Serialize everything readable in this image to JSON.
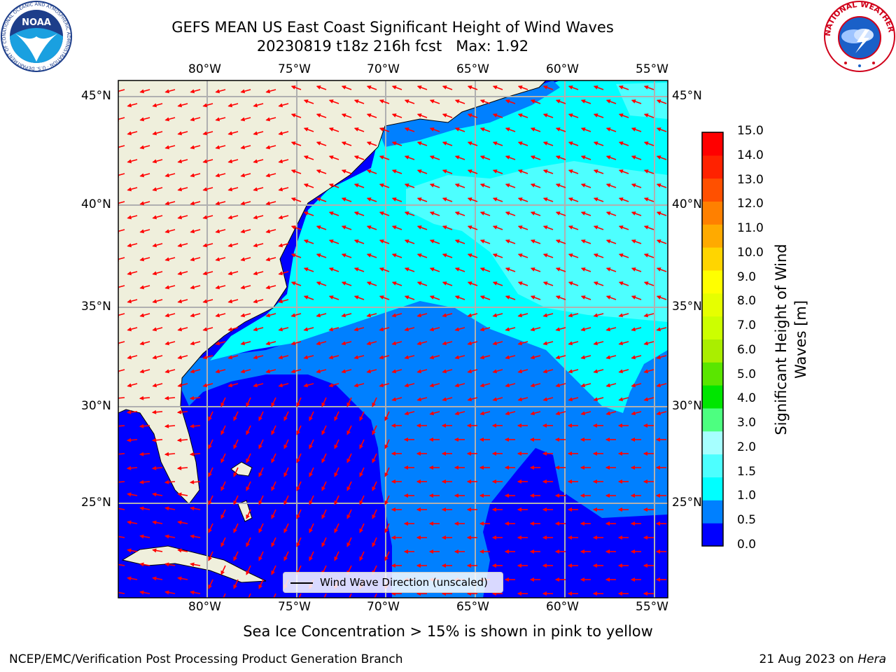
{
  "title_line1": "GEFS MEAN US East Coast Significant Height of Wind Waves",
  "title_line2": "20230819 t18z 216h fcst   Max: 1.92",
  "lon_ticks": [
    "80°W",
    "75°W",
    "70°W",
    "65°W",
    "60°W",
    "55°W"
  ],
  "lat_ticks": [
    "45°N",
    "40°N",
    "35°N",
    "30°N",
    "25°N"
  ],
  "colorbar": {
    "label": "Significant Height of Wind\nWaves [m]",
    "ticks": [
      "15.0",
      "14.0",
      "13.0",
      "12.0",
      "11.0",
      "10.0",
      "9.0",
      "8.0",
      "7.0",
      "6.0",
      "5.0",
      "4.0",
      "3.0",
      "2.0",
      "1.5",
      "1.0",
      "0.5",
      "0.0"
    ],
    "colors": [
      "#0000ff",
      "#0080ff",
      "#00ffff",
      "#4dffff",
      "#a6ffff",
      "#4dff80",
      "#00e600",
      "#5ae600",
      "#aaee00",
      "#ccff00",
      "#e6ff00",
      "#ffff00",
      "#ffd500",
      "#ffaa00",
      "#ff8000",
      "#ff5000",
      "#ff2200",
      "#ff0000"
    ]
  },
  "legend_label": "Wind Wave Direction (unscaled)",
  "note": "Sea Ice Concentration > 15% is shown in pink to yellow",
  "footer_left": "NCEP/EMC/Verification Post Processing Product Generation Branch",
  "footer_right_date": "21 Aug 2023 on ",
  "footer_right_machine": "Hera",
  "noaa_logo_text": "NOAA",
  "noaa_ring_text": "NATIONAL OCEANIC AND ATMOSPHERIC ADMINISTRATION · U.S. DEPARTMENT OF COMMERCE",
  "nws_ring_text": "NATIONAL WEATHER SERVICE"
}
